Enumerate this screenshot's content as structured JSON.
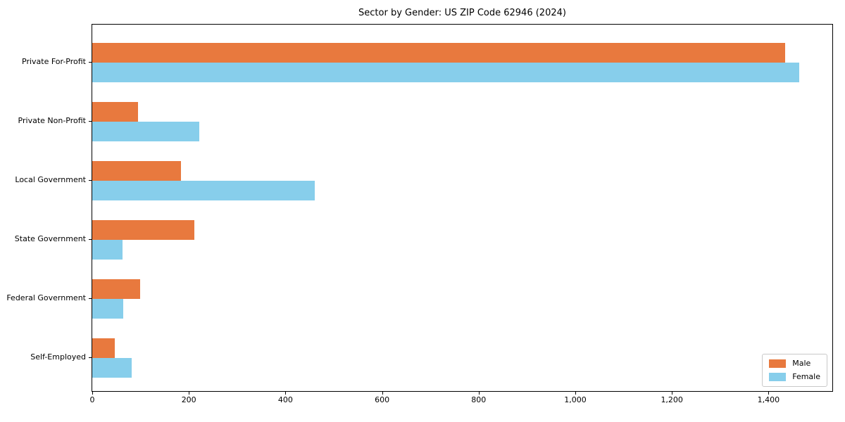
{
  "chart_data": {
    "type": "bar",
    "orientation": "horizontal",
    "title": "Sector by Gender: US ZIP Code 62946 (2024)",
    "categories": [
      "Private For-Profit",
      "Private Non-Profit",
      "Local Government",
      "State Government",
      "Federal Government",
      "Self-Employed"
    ],
    "series": [
      {
        "name": "Male",
        "color": "#e8793e",
        "values": [
          1434,
          94,
          183,
          212,
          99,
          46
        ]
      },
      {
        "name": "Female",
        "color": "#87ceeb",
        "values": [
          1463,
          221,
          461,
          62,
          64,
          81
        ]
      }
    ],
    "xlabel": "",
    "ylabel": "",
    "xlim": [
      0,
      1532
    ],
    "xticks": [
      0,
      200,
      400,
      600,
      800,
      1000,
      1200,
      1400
    ],
    "xtick_labels": [
      "0",
      "200",
      "400",
      "600",
      "800",
      "1,000",
      "1,200",
      "1,400"
    ],
    "grid": false,
    "legend": {
      "position": "lower right",
      "entries": [
        "Male",
        "Female"
      ]
    }
  }
}
